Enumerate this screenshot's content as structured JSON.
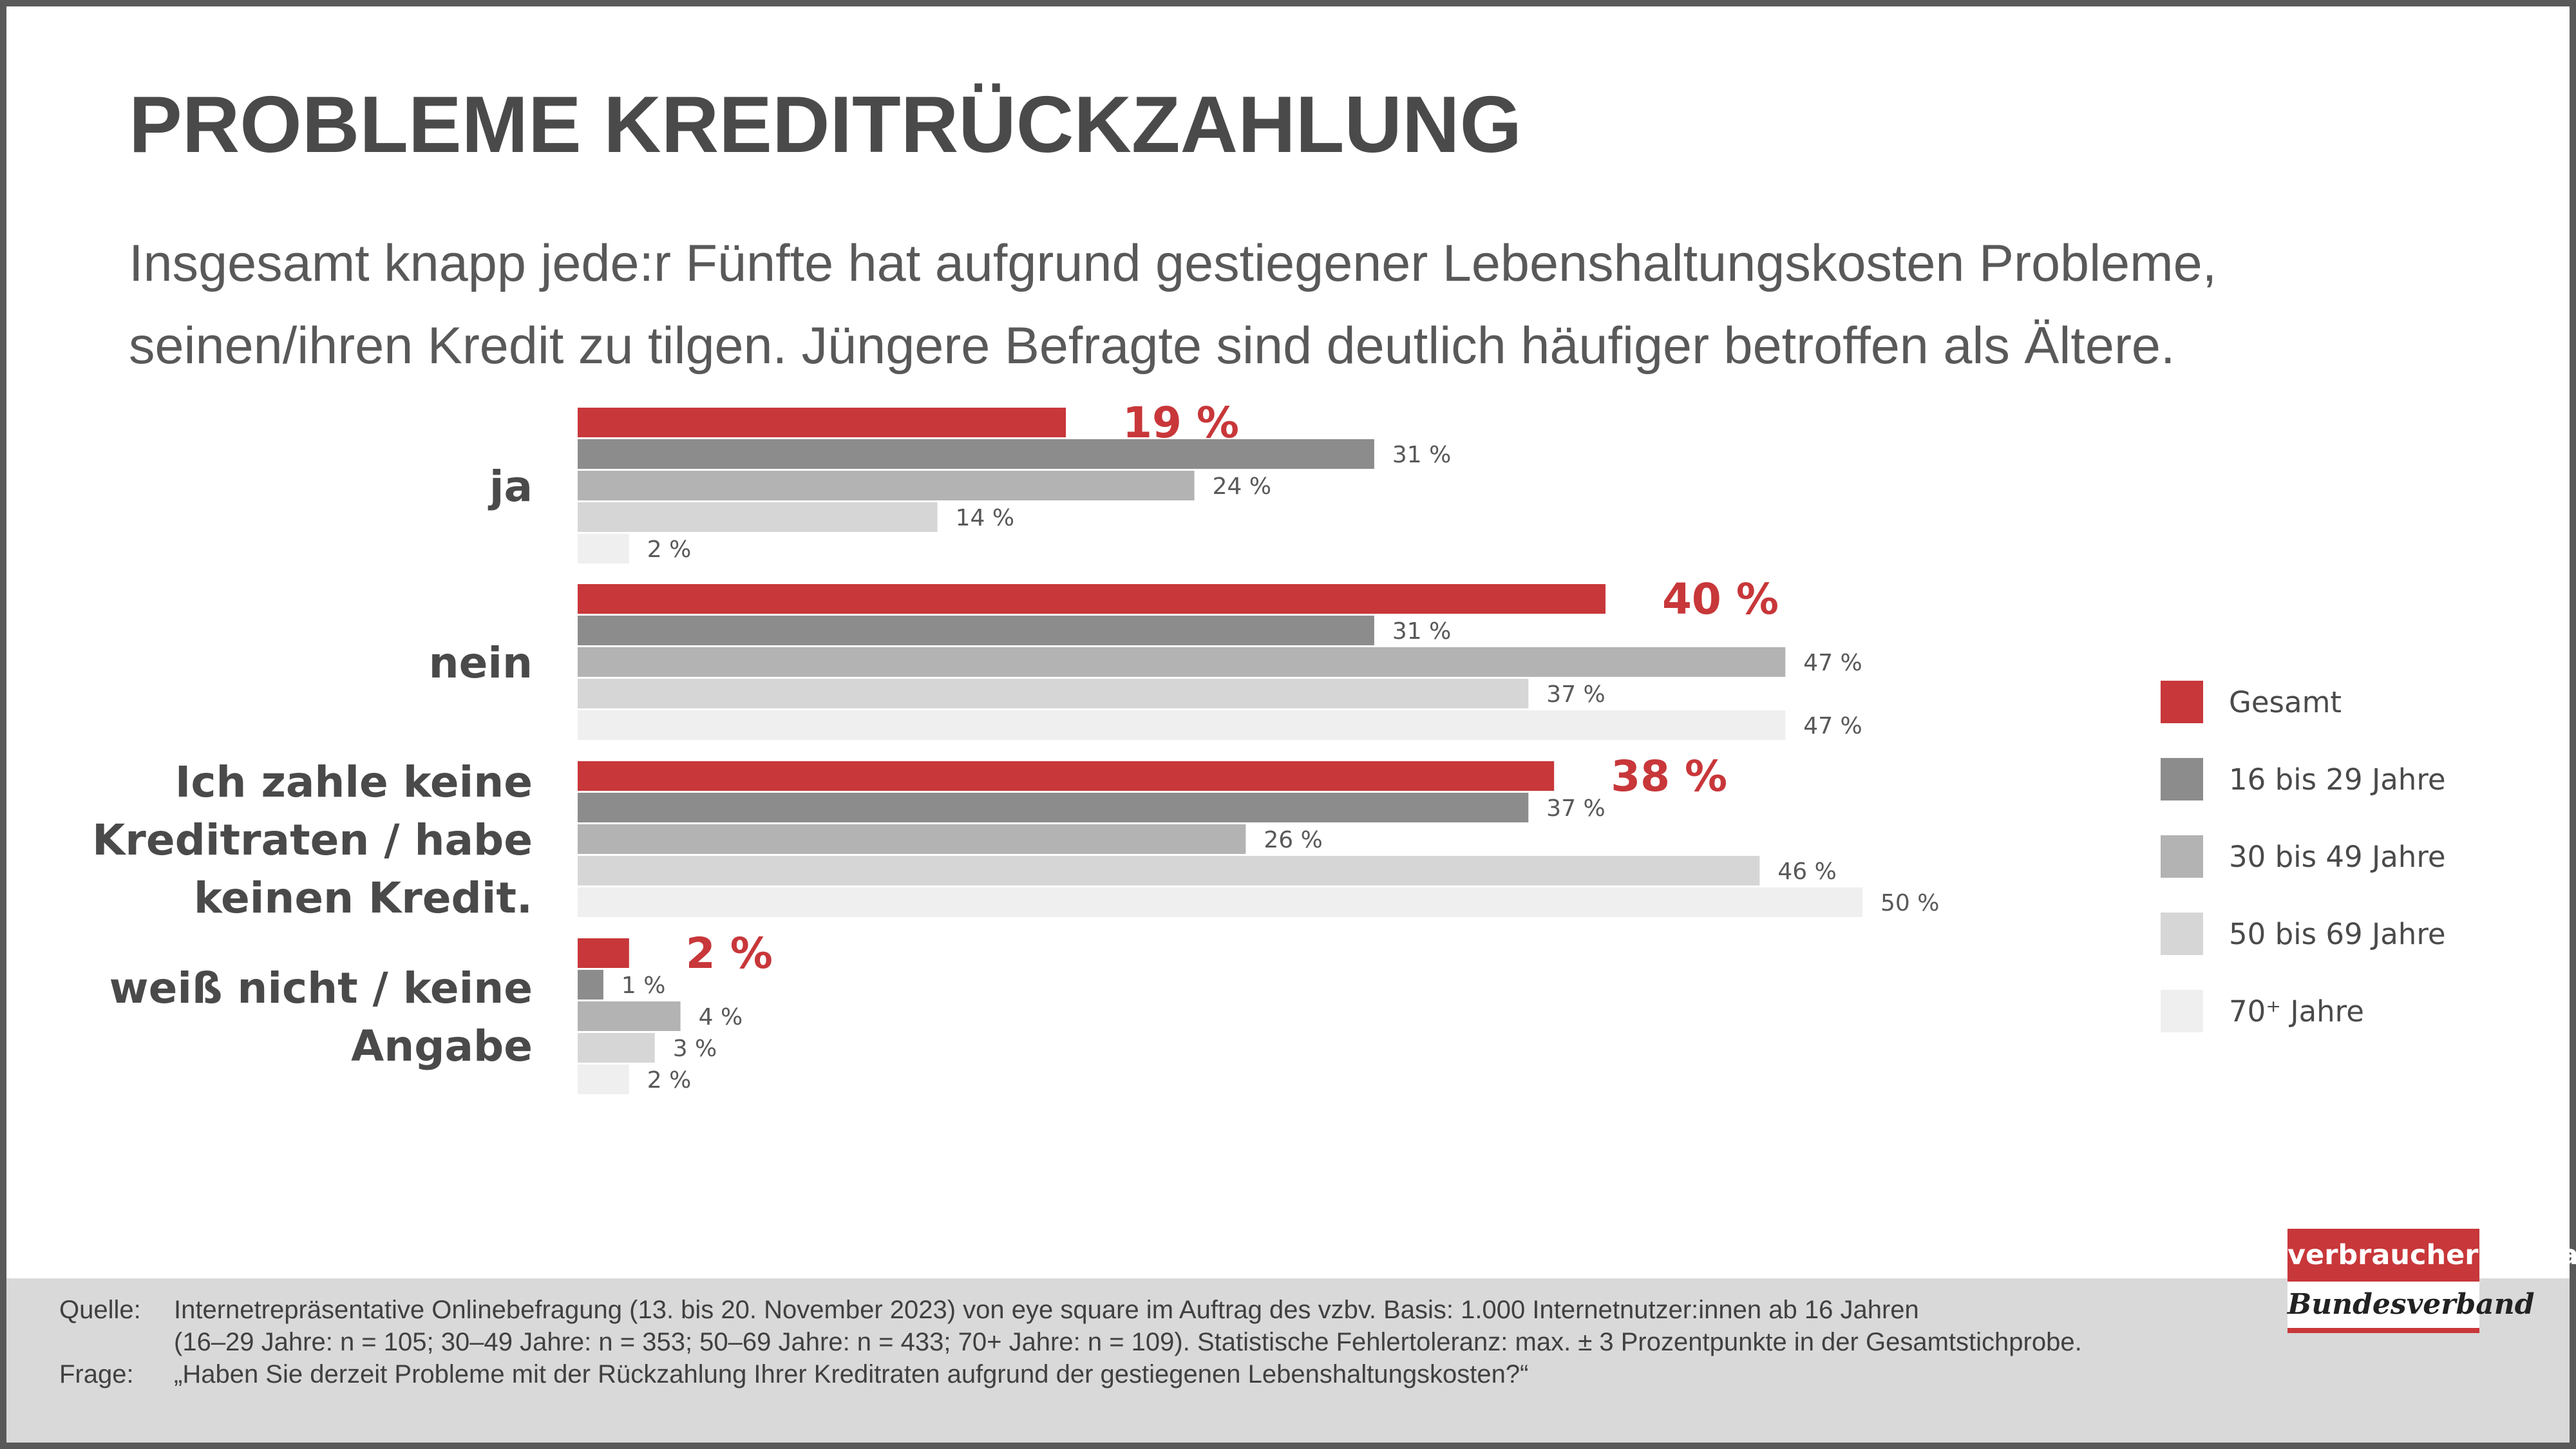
{
  "title": "PROBLEME KREDITRÜCKZAHLUNG",
  "subtitle_lines": [
    "Insgesamt knapp jede:r Fünfte hat aufgrund gestiegener Lebenshaltungskosten Probleme,",
    "seinen/ihren Kredit zu tilgen. Jüngere Befragte sind deutlich häufiger betroffen als Ältere."
  ],
  "chart_data": {
    "type": "bar",
    "orientation": "horizontal",
    "xlim": [
      0,
      50
    ],
    "grid": false,
    "legend_position": "right",
    "categories": [
      [
        "ja"
      ],
      [
        "nein"
      ],
      [
        "Ich zahle keine",
        "Kreditraten / habe",
        "keinen Kredit."
      ],
      [
        "weiß nicht / keine",
        "Angabe"
      ]
    ],
    "series": [
      {
        "name": "Gesamt",
        "color": "#c8373a",
        "values": [
          19,
          40,
          38,
          2
        ],
        "labels": [
          "19 %",
          "40 %",
          "38 %",
          "2 %"
        ]
      },
      {
        "name": "16 bis 29 Jahre",
        "color": "#8c8c8c",
        "values": [
          31,
          31,
          37,
          1
        ],
        "labels": [
          "31 %",
          "31 %",
          "37 %",
          "1 %"
        ]
      },
      {
        "name": "30 bis 49 Jahre",
        "color": "#b3b3b3",
        "values": [
          24,
          47,
          26,
          4
        ],
        "labels": [
          "24 %",
          "47 %",
          "26 %",
          "4 %"
        ]
      },
      {
        "name": "50 bis 69 Jahre",
        "color": "#d6d6d6",
        "values": [
          14,
          37,
          46,
          3
        ],
        "labels": [
          "14 %",
          "37 %",
          "46 %",
          "3 %"
        ]
      },
      {
        "name": "70⁺ Jahre",
        "color": "#efefef",
        "values": [
          2,
          47,
          50,
          2
        ],
        "labels": [
          "2 %",
          "47 %",
          "50 %",
          "2 %"
        ]
      }
    ]
  },
  "footer": {
    "source_key": "Quelle:",
    "source_line1": "Internetrepräsentative Onlinebefragung (13. bis 20. November 2023) von eye square im Auftrag des vzbv. Basis: 1.000 Internetnutzer:innen ab 16 Jahren",
    "source_line2": "(16–29 Jahre: n = 105; 30–49 Jahre: n = 353; 50–69 Jahre: n = 433; 70+ Jahre: n = 109). Statistische Fehlertoleranz: max. ± 3 Prozentpunkte in der Gesamtstichprobe.",
    "question_key": "Frage:",
    "question_text": "„Haben Sie derzeit Probleme mit der Rückzahlung Ihrer Kreditraten aufgrund der gestiegenen Lebenshaltungskosten?“"
  },
  "logo": {
    "top_text": "verbraucherzentrale",
    "bottom_text": "Bundesverband"
  }
}
